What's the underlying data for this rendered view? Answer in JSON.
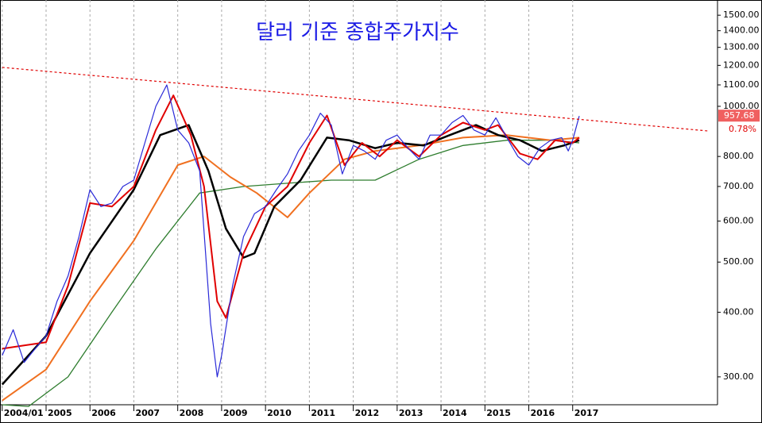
{
  "chart_data": {
    "type": "line",
    "title": "달러 기준 종합주가지수",
    "log_scale": true,
    "grid": true,
    "xlim": [
      2003.95,
      2020.3
    ],
    "ylim": [
      265,
      1605
    ],
    "xticks": [
      {
        "value": 2004.0,
        "label": "2004/01"
      },
      2005,
      2006,
      2007,
      2008,
      2009,
      2010,
      2011,
      2012,
      2013,
      2014,
      2015,
      2016,
      2017
    ],
    "yticks": [
      {
        "value": 300,
        "label": "300.00"
      },
      {
        "value": 400,
        "label": "400.00"
      },
      {
        "value": 500,
        "label": "500.00"
      },
      {
        "value": 600,
        "label": "600.00"
      },
      {
        "value": 700,
        "label": "700.00"
      },
      {
        "value": 800,
        "label": "800.00"
      },
      {
        "value": 1000,
        "label": "1000.00"
      },
      {
        "value": 1100,
        "label": "1100.00"
      },
      {
        "value": 1200,
        "label": "1200.00"
      },
      {
        "value": 1300,
        "label": "1300.00"
      },
      {
        "value": 1400,
        "label": "1400.00"
      },
      {
        "value": 1500,
        "label": "1500.00"
      }
    ],
    "series": [
      {
        "color": "#2a2ad8",
        "width": 1.2,
        "x": [
          2004.0,
          2004.25,
          2004.5,
          2004.75,
          2005.0,
          2005.25,
          2005.5,
          2005.75,
          2006.0,
          2006.25,
          2006.5,
          2006.75,
          2007.0,
          2007.25,
          2007.5,
          2007.75,
          2008.0,
          2008.25,
          2008.5,
          2008.75,
          2008.9,
          2009.0,
          2009.25,
          2009.5,
          2009.75,
          2010.0,
          2010.25,
          2010.5,
          2010.75,
          2011.0,
          2011.25,
          2011.5,
          2011.75,
          2012.0,
          2012.25,
          2012.5,
          2012.75,
          2013.0,
          2013.25,
          2013.5,
          2013.75,
          2014.0,
          2014.25,
          2014.5,
          2014.75,
          2015.0,
          2015.25,
          2015.5,
          2015.75,
          2016.0,
          2016.25,
          2016.5,
          2016.75,
          2016.9,
          2017.0,
          2017.15
        ],
        "values": [
          330,
          370,
          320,
          340,
          360,
          420,
          470,
          560,
          690,
          640,
          650,
          700,
          720,
          850,
          1000,
          1100,
          900,
          850,
          750,
          380,
          300,
          330,
          450,
          560,
          620,
          640,
          690,
          740,
          820,
          880,
          970,
          920,
          740,
          840,
          820,
          790,
          860,
          880,
          830,
          790,
          880,
          880,
          930,
          960,
          900,
          880,
          950,
          870,
          800,
          770,
          830,
          860,
          870,
          820,
          860,
          957.68
        ]
      },
      {
        "color": "#e00000",
        "width": 2,
        "x": [
          2004.0,
          2004.5,
          2005.0,
          2005.5,
          2006.0,
          2006.5,
          2007.0,
          2007.5,
          2007.9,
          2008.3,
          2008.6,
          2008.9,
          2009.1,
          2009.5,
          2010.0,
          2010.5,
          2011.0,
          2011.4,
          2011.8,
          2012.2,
          2012.6,
          2013.0,
          2013.5,
          2014.0,
          2014.5,
          2015.0,
          2015.3,
          2015.8,
          2016.2,
          2016.6,
          2017.0,
          2017.15
        ],
        "values": [
          340,
          345,
          350,
          450,
          650,
          640,
          700,
          900,
          1050,
          880,
          700,
          420,
          390,
          520,
          640,
          700,
          850,
          960,
          770,
          850,
          800,
          860,
          800,
          880,
          930,
          900,
          920,
          810,
          790,
          860,
          850,
          870
        ]
      },
      {
        "color": "#000000",
        "width": 2.5,
        "x": [
          2004.0,
          2005.0,
          2006.0,
          2007.0,
          2007.6,
          2008.25,
          2008.7,
          2009.1,
          2009.5,
          2009.75,
          2010.2,
          2010.8,
          2011.4,
          2011.9,
          2012.5,
          2013.0,
          2013.6,
          2014.2,
          2014.8,
          2015.3,
          2015.8,
          2016.3,
          2016.8,
          2017.15
        ],
        "values": [
          290,
          360,
          520,
          690,
          880,
          920,
          750,
          580,
          510,
          520,
          640,
          720,
          870,
          860,
          830,
          850,
          840,
          880,
          920,
          880,
          860,
          820,
          840,
          860
        ]
      },
      {
        "color": "#f07020",
        "width": 2,
        "x": [
          2004.0,
          2005.0,
          2006.0,
          2007.0,
          2008.0,
          2008.6,
          2009.2,
          2009.8,
          2010.5,
          2011.0,
          2011.8,
          2012.5,
          2013.5,
          2014.5,
          2015.5,
          2016.5,
          2017.15
        ],
        "values": [
          270,
          310,
          420,
          550,
          770,
          800,
          730,
          680,
          610,
          680,
          790,
          820,
          840,
          870,
          880,
          860,
          870
        ]
      },
      {
        "color": "#2e7d2e",
        "width": 1.3,
        "x": [
          2004.0,
          2004.6,
          2005.5,
          2006.5,
          2007.5,
          2008.5,
          2009.5,
          2010.5,
          2011.5,
          2012.5,
          2013.5,
          2014.5,
          2015.5,
          2016.5,
          2017.15
        ],
        "values": [
          265,
          263,
          300,
          400,
          530,
          680,
          700,
          710,
          720,
          720,
          790,
          840,
          860,
          860,
          850
        ]
      }
    ],
    "trendline": {
      "color": "#e00000",
      "x": [
        2004.0,
        2020.1
      ],
      "values": [
        1189,
        896
      ]
    },
    "last_value": 957.68,
    "change": {
      "value": 0.78,
      "label": "0.78%"
    }
  }
}
